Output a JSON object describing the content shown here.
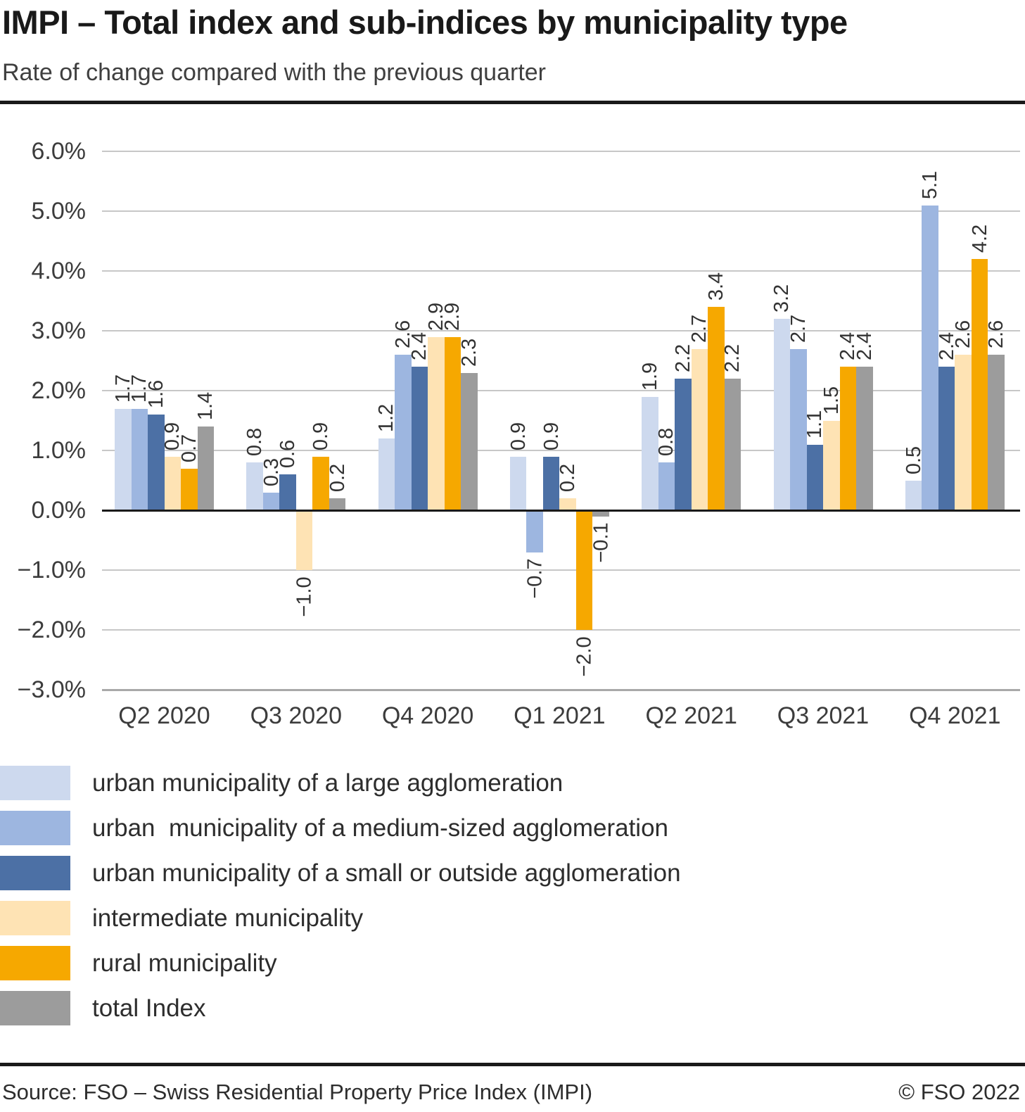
{
  "header": {
    "title": "IMPI – Total index and sub-indices by municipality type",
    "subtitle": "Rate of change compared with the previous quarter"
  },
  "footer": {
    "source": "Source: FSO – Swiss Residential Property Price Index (IMPI)",
    "copyright": "© FSO 2022"
  },
  "chart_data": {
    "type": "bar",
    "title": "IMPI – Total index and sub-indices by municipality type",
    "subtitle": "Rate of change compared with the previous quarter",
    "xlabel": "",
    "ylabel": "",
    "unit": "%",
    "grid": true,
    "legend_position": "bottom",
    "value_labels": "rotated 90° counterclockwise, one decimal",
    "ylim": [
      -3,
      6
    ],
    "yticks": [
      {
        "v": 6,
        "label": "6.0%"
      },
      {
        "v": 5,
        "label": "5.0%"
      },
      {
        "v": 4,
        "label": "4.0%"
      },
      {
        "v": 3,
        "label": "3.0%"
      },
      {
        "v": 2,
        "label": "2.0%"
      },
      {
        "v": 1,
        "label": "1.0%"
      },
      {
        "v": 0,
        "label": "0.0%"
      },
      {
        "v": -1,
        "label": "−1.0%"
      },
      {
        "v": -2,
        "label": "−2.0%"
      },
      {
        "v": -3,
        "label": "−3.0%"
      }
    ],
    "categories": [
      "Q2 2020",
      "Q3 2020",
      "Q4 2020",
      "Q1 2021",
      "Q2 2021",
      "Q3 2021",
      "Q4 2021"
    ],
    "series": [
      {
        "name": "urban municipality of a large agglomeration",
        "color": "#cdd9ee",
        "values": [
          1.7,
          0.8,
          1.2,
          0.9,
          1.9,
          3.2,
          0.5
        ]
      },
      {
        "name": "urban  municipality of a medium-sized agglomeration",
        "color": "#9db6e0",
        "values": [
          1.7,
          0.3,
          2.6,
          -0.7,
          0.8,
          2.7,
          5.1
        ]
      },
      {
        "name": "urban municipality of a small or outside agglomeration",
        "color": "#4c70a5",
        "values": [
          1.6,
          0.6,
          2.4,
          0.9,
          2.2,
          1.1,
          2.4
        ]
      },
      {
        "name": "intermediate municipality",
        "color": "#fee3b4",
        "values": [
          0.9,
          -1.0,
          2.9,
          0.2,
          2.7,
          1.5,
          2.6
        ]
      },
      {
        "name": "rural municipality",
        "color": "#f6a800",
        "values": [
          0.7,
          0.9,
          2.9,
          -2.0,
          3.4,
          2.4,
          4.2
        ]
      },
      {
        "name": "total Index",
        "color": "#9c9c9c",
        "values": [
          1.4,
          0.2,
          2.3,
          -0.1,
          2.2,
          2.4,
          2.6
        ]
      }
    ]
  }
}
